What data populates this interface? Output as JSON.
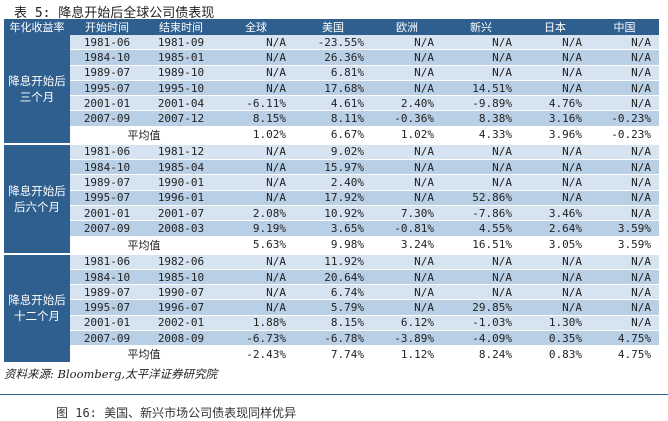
{
  "title": "表 5: 降息开始后全球公司债表现",
  "headers": [
    "年化收益率",
    "开始时间",
    "结束时间",
    "全球",
    "美国",
    "欧洲",
    "新兴",
    "日本",
    "中国"
  ],
  "groups": [
    {
      "label": "降息开始后三个月",
      "rows": [
        [
          "1981-06",
          "1981-09",
          "N/A",
          "-23.55%",
          "N/A",
          "N/A",
          "N/A",
          "N/A"
        ],
        [
          "1984-10",
          "1985-01",
          "N/A",
          "26.36%",
          "N/A",
          "N/A",
          "N/A",
          "N/A"
        ],
        [
          "1989-07",
          "1989-10",
          "N/A",
          "6.81%",
          "N/A",
          "N/A",
          "N/A",
          "N/A"
        ],
        [
          "1995-07",
          "1995-10",
          "N/A",
          "17.68%",
          "N/A",
          "14.51%",
          "N/A",
          "N/A"
        ],
        [
          "2001-01",
          "2001-04",
          "-6.11%",
          "4.61%",
          "2.40%",
          "-9.89%",
          "4.76%",
          "N/A"
        ],
        [
          "2007-09",
          "2007-12",
          "8.15%",
          "8.11%",
          "-0.36%",
          "8.38%",
          "3.16%",
          "-0.23%"
        ]
      ],
      "avg_label": "平均值",
      "avg": [
        "1.02%",
        "6.67%",
        "1.02%",
        "4.33%",
        "3.96%",
        "-0.23%"
      ]
    },
    {
      "label": "降息开始后后六个月",
      "rows": [
        [
          "1981-06",
          "1981-12",
          "N/A",
          "9.02%",
          "N/A",
          "N/A",
          "N/A",
          "N/A"
        ],
        [
          "1984-10",
          "1985-04",
          "N/A",
          "15.97%",
          "N/A",
          "N/A",
          "N/A",
          "N/A"
        ],
        [
          "1989-07",
          "1990-01",
          "N/A",
          "2.40%",
          "N/A",
          "N/A",
          "N/A",
          "N/A"
        ],
        [
          "1995-07",
          "1996-01",
          "N/A",
          "17.92%",
          "N/A",
          "52.86%",
          "N/A",
          "N/A"
        ],
        [
          "2001-01",
          "2001-07",
          "2.08%",
          "10.92%",
          "7.30%",
          "-7.86%",
          "3.46%",
          "N/A"
        ],
        [
          "2007-09",
          "2008-03",
          "9.19%",
          "3.65%",
          "-0.81%",
          "4.55%",
          "2.64%",
          "3.59%"
        ]
      ],
      "avg_label": "平均值",
      "avg": [
        "5.63%",
        "9.98%",
        "3.24%",
        "16.51%",
        "3.05%",
        "3.59%"
      ]
    },
    {
      "label": "降息开始后十二个月",
      "rows": [
        [
          "1981-06",
          "1982-06",
          "N/A",
          "11.92%",
          "N/A",
          "N/A",
          "N/A",
          "N/A"
        ],
        [
          "1984-10",
          "1985-10",
          "N/A",
          "20.64%",
          "N/A",
          "N/A",
          "N/A",
          "N/A"
        ],
        [
          "1989-07",
          "1990-07",
          "N/A",
          "6.74%",
          "N/A",
          "N/A",
          "N/A",
          "N/A"
        ],
        [
          "1995-07",
          "1996-07",
          "N/A",
          "5.79%",
          "N/A",
          "29.85%",
          "N/A",
          "N/A"
        ],
        [
          "2001-01",
          "2002-01",
          "1.88%",
          "8.15%",
          "6.12%",
          "-1.03%",
          "1.30%",
          "N/A"
        ],
        [
          "2007-09",
          "2008-09",
          "-6.73%",
          "-6.78%",
          "-3.89%",
          "-4.09%",
          "0.35%",
          "4.75%"
        ]
      ],
      "avg_label": "平均值",
      "avg": [
        "-2.43%",
        "7.74%",
        "1.12%",
        "8.24%",
        "0.83%",
        "4.75%"
      ]
    }
  ],
  "source": "资料来源: Bloomberg,太平洋证券研究院",
  "next_caption": "图 16: 美国、新兴市场公司债表现同样优异"
}
